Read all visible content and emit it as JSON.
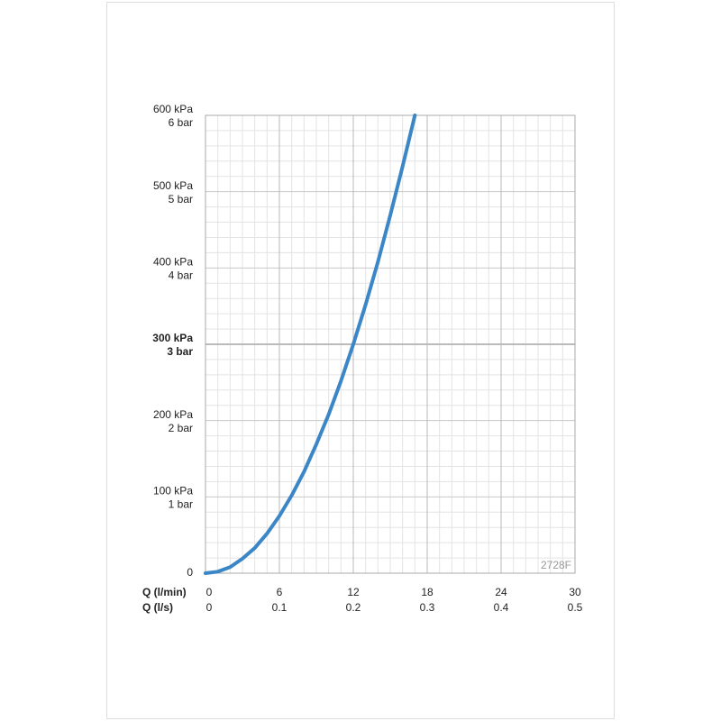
{
  "chart_data": {
    "type": "line",
    "x_label": "Q (l/min)",
    "x2_label": "Q (l/s)",
    "annotation": "2728F",
    "x": [
      0,
      1,
      2,
      3,
      4,
      5,
      6,
      7,
      8,
      9,
      10,
      11,
      12,
      13,
      14,
      15,
      16,
      17
    ],
    "values": [
      0,
      2,
      8,
      19,
      33,
      52,
      75,
      102,
      133,
      169,
      208,
      252,
      300,
      352,
      408,
      469,
      533,
      600
    ],
    "color": "#3b86c6",
    "xlim": [
      0,
      30
    ],
    "xticks": [
      0,
      6,
      12,
      18,
      24,
      30
    ],
    "x2lim": [
      0,
      0.5
    ],
    "x2ticks": [
      0,
      0.1,
      0.2,
      0.3,
      0.4,
      0.5
    ],
    "ylim": [
      0,
      600
    ],
    "yticks": [
      0,
      {
        "value": 100,
        "label": "100 kPa"
      },
      {
        "value": 200,
        "label": "200 kPa"
      },
      {
        "value": 300,
        "label": "300 kPa"
      },
      {
        "value": 400,
        "label": "400 kPa"
      },
      {
        "value": 500,
        "label": "500 kPa"
      },
      {
        "value": 600,
        "label": "600 kPa"
      }
    ],
    "y2lim": [
      0,
      6
    ],
    "y2ticks": [
      {
        "value": 1,
        "label": "1 bar"
      },
      {
        "value": 2,
        "label": "2 bar"
      },
      {
        "value": 3,
        "label": "3 bar"
      },
      {
        "value": 4,
        "label": "4 bar"
      },
      {
        "value": 5,
        "label": "5 bar"
      },
      {
        "value": 6,
        "label": "6 bar"
      }
    ],
    "highlight_ytick": 300,
    "grid": true
  }
}
